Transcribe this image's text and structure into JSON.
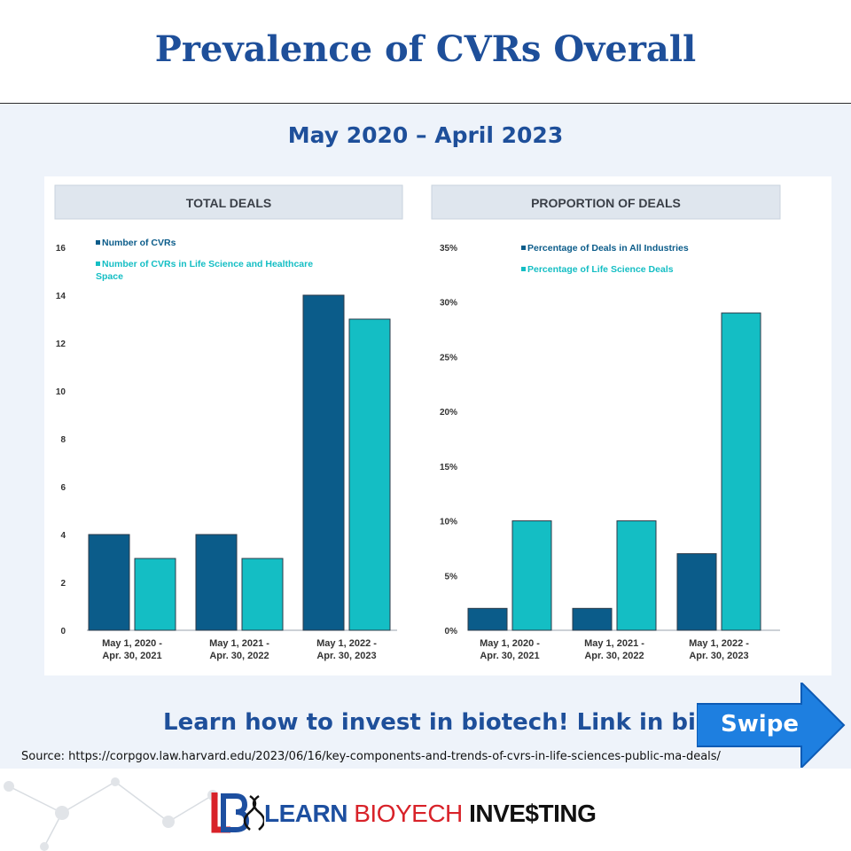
{
  "title": "Prevalence of CVRs Overall",
  "subtitle": "May 2020 – April 2023",
  "cta_text": "Learn how to invest in biotech! Link in bio",
  "swipe_label": "Swipe",
  "source_text": "Source: https://corpgov.law.harvard.edu/2023/06/16/key-components-and-trends-of-cvrs-in-life-sciences-public-ma-deals/",
  "logo": {
    "word1": "LEARN",
    "word2": "BIO",
    "word2b": "ECH",
    "word3": "INVE$TING",
    "icon": "dna-logo-icon"
  },
  "colors": {
    "title_blue": "#1e4f9a",
    "series_dark": "#0b5c8a",
    "series_teal": "#14bec4",
    "arrow_blue": "#1e7fe0",
    "logo_red": "#d82229"
  },
  "chart_data": [
    {
      "type": "bar",
      "title": "TOTAL DEALS",
      "categories": [
        [
          "May 1, 2020 -",
          "Apr. 30, 2021"
        ],
        [
          "May 1, 2021 -",
          "Apr. 30, 2022"
        ],
        [
          "May 1, 2022 -",
          "Apr. 30, 2023"
        ]
      ],
      "series": [
        {
          "name": "Number of CVRs",
          "color": "#0b5c8a",
          "values": [
            4,
            4,
            14
          ]
        },
        {
          "name": "Number of CVRs in Life Science and Healthcare Space",
          "color": "#14bec4",
          "values": [
            3,
            3,
            13
          ]
        }
      ],
      "ylim": [
        0,
        16
      ],
      "yticks": [
        0,
        2,
        4,
        6,
        8,
        10,
        12,
        14,
        16
      ],
      "ytick_labels": [
        "0",
        "2",
        "4",
        "6",
        "8",
        "10",
        "12",
        "14",
        "16"
      ],
      "grid": false,
      "legend_position": "top-left"
    },
    {
      "type": "bar",
      "title": "PROPORTION OF DEALS",
      "categories": [
        [
          "May 1, 2020 -",
          "Apr. 30, 2021"
        ],
        [
          "May 1, 2021 -",
          "Apr. 30, 2022"
        ],
        [
          "May 1, 2022 -",
          "Apr. 30, 2023"
        ]
      ],
      "series": [
        {
          "name": "Percentage of Deals in All Industries",
          "color": "#0b5c8a",
          "values": [
            2,
            2,
            7
          ]
        },
        {
          "name": "Percentage of Life Science Deals",
          "color": "#14bec4",
          "values": [
            10,
            10,
            29
          ]
        }
      ],
      "ylim": [
        0,
        35
      ],
      "yticks": [
        0,
        5,
        10,
        15,
        20,
        25,
        30,
        35
      ],
      "ytick_labels": [
        "0%",
        "5%",
        "10%",
        "15%",
        "20%",
        "25%",
        "30%",
        "35%"
      ],
      "grid": false,
      "legend_position": "top-center"
    }
  ]
}
